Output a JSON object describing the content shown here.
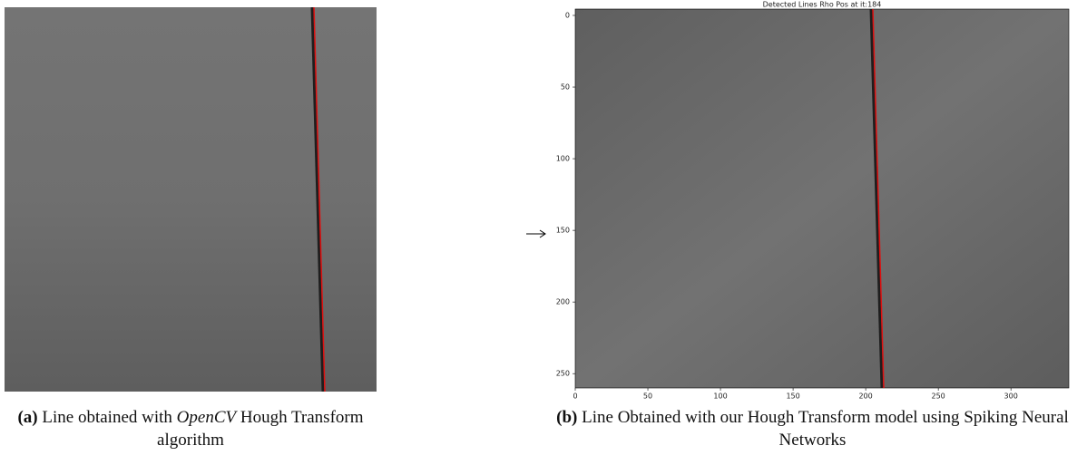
{
  "figure": {
    "panels": [
      {
        "caption": {
          "label": "(a)",
          "before": "Line obtained with",
          "emphasis": "OpenCV",
          "after": "Hough Transform algorithm"
        }
      },
      {
        "caption": {
          "label": "(b)",
          "text": "Line Obtained with our Hough Transform model using Spiking Neural Networks"
        },
        "plot": {
          "title": "Detected Lines Rho Pos at it:184",
          "xlim": [
            0,
            343
          ],
          "ylim": [
            0,
            260
          ],
          "xticks": [
            0,
            50,
            100,
            150,
            200,
            250,
            300
          ],
          "yticks": [
            0,
            50,
            100,
            150,
            200,
            250
          ]
        }
      }
    ]
  }
}
